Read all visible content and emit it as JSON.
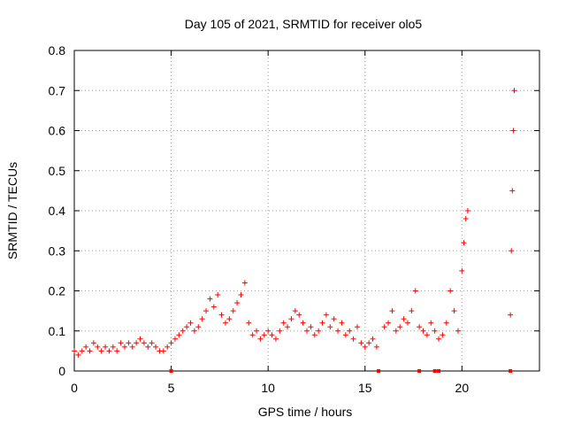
{
  "chart_data": {
    "type": "scatter",
    "title": "Day 105 of 2021, SRMTID for receiver olo5",
    "xlabel": "GPS time / hours",
    "ylabel": "SRMTID / TECUs",
    "xlim": [
      0,
      24
    ],
    "ylim": [
      0,
      0.8
    ],
    "x_ticks": [
      0,
      5,
      10,
      15,
      20
    ],
    "x_tick_labels": [
      "0",
      "5",
      "10",
      "15",
      "20"
    ],
    "y_ticks": [
      0,
      0.1,
      0.2,
      0.3,
      0.4,
      0.5,
      0.6,
      0.7,
      0.8
    ],
    "y_tick_labels": [
      "0",
      "0.1",
      "0.2",
      "0.3",
      "0.4",
      "0.5",
      "0.6",
      "0.7",
      "0.8"
    ],
    "grid": true,
    "marker": "+",
    "color": "#ff0000",
    "series": [
      {
        "name": "SRMTID",
        "x": [
          0.0,
          0.2,
          0.4,
          0.6,
          0.8,
          1.0,
          1.2,
          1.4,
          1.6,
          1.8,
          2.0,
          2.2,
          2.4,
          2.6,
          2.8,
          3.0,
          3.2,
          3.4,
          3.6,
          3.8,
          4.0,
          4.2,
          4.4,
          4.6,
          4.8,
          5.0,
          5.2,
          5.4,
          5.6,
          5.8,
          6.0,
          6.2,
          6.4,
          6.6,
          6.8,
          7.0,
          7.2,
          7.4,
          7.6,
          7.8,
          8.0,
          8.2,
          8.4,
          8.6,
          8.8,
          9.0,
          9.2,
          9.4,
          9.6,
          9.8,
          10.0,
          10.2,
          10.4,
          10.6,
          10.8,
          11.0,
          11.2,
          11.4,
          11.6,
          11.8,
          12.0,
          12.2,
          12.4,
          12.6,
          12.8,
          13.0,
          13.2,
          13.4,
          13.6,
          13.8,
          14.0,
          14.2,
          14.4,
          14.6,
          14.8,
          15.0,
          15.2,
          15.4,
          15.6,
          16.0,
          16.2,
          16.4,
          16.6,
          16.8,
          17.0,
          17.2,
          17.4,
          17.6,
          17.8,
          18.0,
          18.2,
          18.4,
          18.6,
          18.8,
          19.0,
          19.2,
          19.4,
          19.6,
          19.8,
          20.0,
          20.1,
          20.2,
          20.3,
          22.5,
          22.55,
          22.6,
          22.65,
          22.7
        ],
        "values": [
          0.05,
          0.04,
          0.05,
          0.06,
          0.05,
          0.07,
          0.06,
          0.05,
          0.06,
          0.05,
          0.06,
          0.05,
          0.07,
          0.06,
          0.07,
          0.06,
          0.07,
          0.08,
          0.07,
          0.06,
          0.07,
          0.06,
          0.05,
          0.05,
          0.06,
          0.07,
          0.08,
          0.09,
          0.1,
          0.11,
          0.12,
          0.1,
          0.11,
          0.13,
          0.15,
          0.18,
          0.16,
          0.19,
          0.14,
          0.12,
          0.13,
          0.15,
          0.17,
          0.19,
          0.22,
          0.12,
          0.09,
          0.1,
          0.08,
          0.09,
          0.1,
          0.09,
          0.08,
          0.1,
          0.12,
          0.11,
          0.13,
          0.15,
          0.14,
          0.12,
          0.1,
          0.11,
          0.09,
          0.1,
          0.12,
          0.14,
          0.11,
          0.13,
          0.1,
          0.12,
          0.09,
          0.1,
          0.08,
          0.11,
          0.07,
          0.06,
          0.07,
          0.08,
          0.06,
          0.11,
          0.12,
          0.15,
          0.1,
          0.11,
          0.13,
          0.12,
          0.15,
          0.2,
          0.11,
          0.1,
          0.09,
          0.12,
          0.1,
          0.08,
          0.09,
          0.12,
          0.2,
          0.15,
          0.1,
          0.25,
          0.32,
          0.38,
          0.4,
          0.14,
          0.3,
          0.45,
          0.6,
          0.7
        ]
      }
    ],
    "gap_markers_x": [
      5.0,
      15.7,
      17.8,
      18.6,
      18.8,
      22.5
    ]
  }
}
